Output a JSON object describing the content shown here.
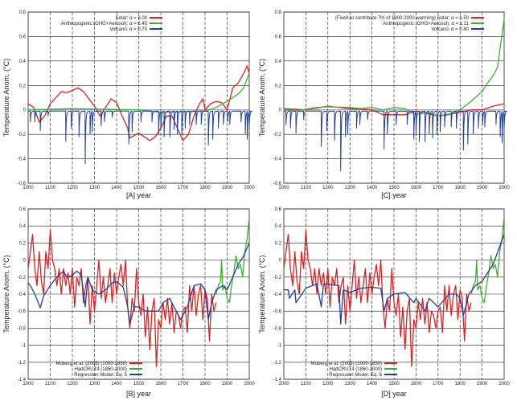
{
  "chart_data": [
    {
      "id": "A",
      "type": "line",
      "xlabel": "[A]  year",
      "ylabel": "Temperature Anom. (°C)",
      "xlim": [
        1000,
        2000
      ],
      "ylim": [
        -0.6,
        0.8
      ],
      "xticks": [
        1000,
        1100,
        1200,
        1300,
        1400,
        1500,
        1600,
        1700,
        1800,
        1900,
        2000
      ],
      "yticks": [
        -0.6,
        -0.4,
        -0.2,
        0,
        0.2,
        0.4,
        0.6,
        0.8
      ],
      "legend_position": "top-right",
      "series": [
        {
          "name": "Solar: α = 3.00",
          "color": "#e02020",
          "x": [
            1000,
            1025,
            1050,
            1075,
            1100,
            1125,
            1150,
            1175,
            1200,
            1225,
            1250,
            1275,
            1300,
            1325,
            1350,
            1375,
            1400,
            1425,
            1450,
            1460,
            1500,
            1525,
            1550,
            1575,
            1600,
            1625,
            1650,
            1675,
            1700,
            1725,
            1750,
            1775,
            1790,
            1800,
            1825,
            1850,
            1875,
            1900,
            1925,
            1950,
            1975,
            1990,
            2000
          ],
          "y": [
            0.05,
            0.02,
            -0.1,
            -0.05,
            0.05,
            0.1,
            0.15,
            0.14,
            0.16,
            0.18,
            0.15,
            0.09,
            0.03,
            -0.05,
            0.02,
            0.09,
            0.06,
            -0.05,
            -0.15,
            -0.23,
            -0.19,
            -0.22,
            -0.25,
            -0.22,
            -0.15,
            -0.05,
            -0.05,
            -0.15,
            -0.25,
            -0.2,
            -0.05,
            0.05,
            0.09,
            0,
            0.05,
            0.07,
            0.06,
            0,
            0.18,
            0.22,
            0.3,
            0.36,
            0.3
          ]
        },
        {
          "name": "Anthropogenic (GHG+Aerosol): α = 0.45",
          "color": "#40b030",
          "x": [
            1000,
            1200,
            1500,
            1600,
            1800,
            1850,
            1900,
            1950,
            1975,
            2000
          ],
          "y": [
            0,
            0.01,
            0,
            -0.02,
            -0.01,
            0.02,
            0.07,
            0.13,
            0.18,
            0.3
          ]
        },
        {
          "name": "Volcano: α = 0.70",
          "color": "#2040a0",
          "kind": "volcano",
          "baseline": -0.01,
          "x": [
            1010,
            1030,
            1055,
            1090,
            1170,
            1195,
            1230,
            1258,
            1280,
            1290,
            1330,
            1345,
            1380,
            1455,
            1470,
            1510,
            1560,
            1590,
            1600,
            1615,
            1641,
            1660,
            1675,
            1695,
            1710,
            1730,
            1760,
            1783,
            1815,
            1835,
            1860,
            1883,
            1902,
            1912,
            1963,
            1982,
            1991,
            2000
          ],
          "y": [
            -0.1,
            -0.1,
            -0.17,
            -0.05,
            -0.26,
            -0.15,
            -0.22,
            -0.44,
            -0.2,
            -0.18,
            -0.13,
            -0.1,
            -0.06,
            -0.28,
            -0.18,
            -0.1,
            -0.1,
            -0.2,
            -0.16,
            -0.22,
            -0.22,
            -0.16,
            -0.2,
            -0.2,
            -0.15,
            -0.12,
            -0.12,
            -0.12,
            -0.29,
            -0.24,
            -0.15,
            -0.12,
            -0.1,
            -0.12,
            -0.1,
            -0.2,
            -0.24,
            -0.13
          ]
        }
      ]
    },
    {
      "id": "C",
      "type": "line",
      "xlabel": "[C]  year",
      "ylabel": "Temperature Anom. (°C)",
      "xlim": [
        1000,
        2000
      ],
      "ylim": [
        -0.6,
        0.8
      ],
      "xticks": [
        1000,
        1100,
        1200,
        1300,
        1400,
        1500,
        1600,
        1700,
        1800,
        1900,
        2000
      ],
      "yticks": [
        -0.6,
        -0.4,
        -0.2,
        0,
        0.2,
        0.4,
        0.6,
        0.8
      ],
      "legend_position": "top-right",
      "series": [
        {
          "name": "(Fixed to contribute 7% of 1900-2000 warming) Solar: α = 0.50",
          "color": "#e02020",
          "x": [
            1000,
            1100,
            1200,
            1300,
            1400,
            1450,
            1550,
            1600,
            1700,
            1800,
            1850,
            1900,
            1950,
            2000
          ],
          "y": [
            0.01,
            0,
            0.03,
            0.01,
            0,
            -0.04,
            -0.04,
            -0.01,
            -0.05,
            -0.02,
            0,
            0,
            0.03,
            0.05
          ]
        },
        {
          "name": "Anthropogenic (GHG+Aerosol): α = 1.11",
          "color": "#40b030",
          "x": [
            1000,
            1050,
            1150,
            1200,
            1300,
            1350,
            1400,
            1450,
            1500,
            1550,
            1600,
            1650,
            1700,
            1750,
            1800,
            1850,
            1900,
            1925,
            1950,
            1970,
            1985,
            2000
          ],
          "y": [
            0,
            -0.01,
            0.02,
            0.025,
            0.02,
            0.01,
            0.02,
            0,
            0.02,
            0.01,
            -0.04,
            -0.02,
            -0.05,
            -0.04,
            0,
            0.07,
            0.15,
            0.22,
            0.28,
            0.35,
            0.55,
            0.74
          ]
        },
        {
          "name": "Volcano: α = 0.80",
          "color": "#2040a0",
          "kind": "volcano",
          "baseline": -0.01,
          "x": [
            1010,
            1030,
            1055,
            1090,
            1170,
            1195,
            1230,
            1258,
            1280,
            1290,
            1330,
            1345,
            1380,
            1455,
            1470,
            1510,
            1560,
            1590,
            1600,
            1615,
            1641,
            1660,
            1675,
            1695,
            1710,
            1730,
            1760,
            1783,
            1815,
            1835,
            1860,
            1883,
            1902,
            1912,
            1963,
            1982,
            1991,
            2000
          ],
          "y": [
            -0.12,
            -0.15,
            -0.19,
            -0.08,
            -0.3,
            -0.17,
            -0.25,
            -0.5,
            -0.22,
            -0.2,
            -0.15,
            -0.12,
            -0.08,
            -0.32,
            -0.2,
            -0.12,
            -0.12,
            -0.24,
            -0.2,
            -0.26,
            -0.26,
            -0.2,
            -0.23,
            -0.2,
            -0.18,
            -0.14,
            -0.14,
            -0.15,
            -0.33,
            -0.28,
            -0.2,
            -0.15,
            -0.12,
            -0.14,
            -0.12,
            -0.22,
            -0.27,
            -0.15
          ]
        }
      ]
    },
    {
      "id": "B",
      "type": "line",
      "xlabel": "[B]  year",
      "ylabel": "Temperature Anom. (°C)",
      "xlim": [
        1000,
        2000
      ],
      "ylim": [
        -1.4,
        0.6
      ],
      "xticks": [
        1000,
        1100,
        1200,
        1300,
        1400,
        1500,
        1600,
        1700,
        1800,
        1900,
        2000
      ],
      "yticks": [
        -1.4,
        -1.2,
        -1,
        -0.8,
        -0.6,
        -0.4,
        -0.2,
        0,
        0.2,
        0.4,
        0.6
      ],
      "legend_position": "bottom-left",
      "series": [
        {
          "name": "Moberg et al. (2005) (1000-1850)",
          "color": "#e02020",
          "ref": "moberg"
        },
        {
          "name": "HadCRUT4 (1850-2000)",
          "color": "#40b030",
          "ref": "hadcrut"
        },
        {
          "name": "Regression Model: Eq. 5",
          "color": "#2040a0",
          "x": [
            1000,
            1010,
            1030,
            1055,
            1070,
            1100,
            1130,
            1160,
            1175,
            1200,
            1220,
            1240,
            1258,
            1270,
            1290,
            1320,
            1350,
            1380,
            1400,
            1430,
            1450,
            1460,
            1480,
            1500,
            1530,
            1560,
            1590,
            1610,
            1640,
            1660,
            1690,
            1720,
            1750,
            1780,
            1800,
            1815,
            1830,
            1850,
            1880,
            1900,
            1925,
            1950,
            1975,
            2000
          ],
          "y": [
            -0.27,
            -0.3,
            -0.4,
            -0.56,
            -0.42,
            -0.3,
            -0.2,
            -0.13,
            -0.2,
            -0.18,
            -0.13,
            -0.17,
            -0.55,
            -0.2,
            -0.35,
            -0.4,
            -0.35,
            -0.27,
            -0.25,
            -0.32,
            -0.55,
            -0.75,
            -0.55,
            -0.55,
            -0.6,
            -0.6,
            -0.6,
            -0.5,
            -0.45,
            -0.55,
            -0.7,
            -0.55,
            -0.3,
            -0.28,
            -0.35,
            -0.7,
            -0.5,
            -0.35,
            -0.3,
            -0.35,
            -0.2,
            -0.05,
            0.05,
            0.2
          ]
        }
      ]
    },
    {
      "id": "D",
      "type": "line",
      "xlabel": "[D]  year",
      "ylabel": "Temperature Anom. (°C)",
      "xlim": [
        1000,
        2000
      ],
      "ylim": [
        -1.4,
        0.6
      ],
      "xticks": [
        1000,
        1100,
        1200,
        1300,
        1400,
        1500,
        1600,
        1700,
        1800,
        1900,
        2000
      ],
      "yticks": [
        -1.4,
        -1.2,
        -1,
        -0.8,
        -0.6,
        -0.4,
        -0.2,
        0,
        0.2,
        0.4,
        0.6
      ],
      "legend_position": "bottom-left",
      "series": [
        {
          "name": "Moberg et al. (2005) (1000-1850)",
          "color": "#e02020",
          "ref": "moberg"
        },
        {
          "name": "HadCRUT4 (1850-2000)",
          "color": "#40b030",
          "ref": "hadcrut"
        },
        {
          "name": "Regression Model: Eq. 6",
          "color": "#2040a0",
          "x": [
            1000,
            1020,
            1025,
            1050,
            1055,
            1100,
            1150,
            1170,
            1180,
            1250,
            1258,
            1270,
            1300,
            1350,
            1400,
            1440,
            1455,
            1470,
            1500,
            1550,
            1590,
            1600,
            1641,
            1660,
            1700,
            1750,
            1783,
            1800,
            1815,
            1840,
            1870,
            1900,
            1950,
            2000
          ],
          "y": [
            -0.35,
            -0.35,
            -0.45,
            -0.35,
            -0.5,
            -0.33,
            -0.28,
            -0.55,
            -0.28,
            -0.3,
            -0.75,
            -0.35,
            -0.38,
            -0.33,
            -0.32,
            -0.33,
            -0.6,
            -0.45,
            -0.4,
            -0.38,
            -0.5,
            -0.45,
            -0.6,
            -0.45,
            -0.55,
            -0.4,
            -0.4,
            -0.45,
            -0.65,
            -0.4,
            -0.3,
            -0.25,
            -0.05,
            0.3
          ]
        }
      ]
    }
  ],
  "shared_series": {
    "moberg": {
      "x": [
        1000,
        1010,
        1020,
        1030,
        1040,
        1050,
        1060,
        1070,
        1080,
        1090,
        1100,
        1110,
        1120,
        1130,
        1140,
        1150,
        1160,
        1170,
        1180,
        1190,
        1200,
        1210,
        1220,
        1230,
        1240,
        1250,
        1260,
        1270,
        1280,
        1290,
        1300,
        1310,
        1320,
        1330,
        1340,
        1350,
        1360,
        1370,
        1380,
        1390,
        1400,
        1410,
        1420,
        1430,
        1440,
        1450,
        1460,
        1470,
        1480,
        1490,
        1500,
        1510,
        1520,
        1530,
        1540,
        1550,
        1560,
        1570,
        1580,
        1590,
        1600,
        1610,
        1620,
        1630,
        1640,
        1650,
        1660,
        1670,
        1680,
        1690,
        1700,
        1710,
        1720,
        1730,
        1740,
        1750,
        1760,
        1770,
        1780,
        1790,
        1800,
        1810,
        1820,
        1830,
        1840,
        1850
      ],
      "y": [
        -0.1,
        0.1,
        0.3,
        -0.1,
        -0.3,
        0.1,
        -0.25,
        -0.4,
        0.1,
        -0.1,
        0.35,
        0,
        -0.1,
        -0.3,
        -0.1,
        -0.4,
        -0.1,
        -0.3,
        -0.15,
        -0.4,
        -0.1,
        -0.55,
        -0.2,
        -0.3,
        -0.1,
        -0.5,
        -0.3,
        -0.2,
        -0.75,
        -0.3,
        -0.6,
        -0.3,
        0,
        -0.45,
        -0.2,
        -0.5,
        -0.3,
        -0.1,
        -0.5,
        -0.15,
        -0.4,
        -0.2,
        -0.05,
        -0.3,
        0,
        -0.55,
        -0.8,
        -0.45,
        -0.6,
        -0.1,
        -0.5,
        -0.65,
        -0.4,
        -0.9,
        -0.55,
        -1.05,
        -0.6,
        -0.45,
        -1.25,
        -0.7,
        -0.8,
        -0.5,
        -0.7,
        -0.45,
        -0.75,
        -0.5,
        -0.85,
        -0.6,
        -0.65,
        -0.8,
        -0.6,
        -0.55,
        -0.85,
        -0.3,
        -0.6,
        -0.3,
        -0.65,
        -0.4,
        -0.3,
        -0.7,
        -0.35,
        -0.45,
        -0.95,
        -0.4,
        -0.6,
        -0.5
      ]
    },
    "hadcrut": {
      "x": [
        1850,
        1860,
        1870,
        1875,
        1880,
        1890,
        1900,
        1910,
        1920,
        1930,
        1940,
        1950,
        1960,
        1970,
        1980,
        1990,
        2000
      ],
      "y": [
        -0.4,
        -0.3,
        -0.25,
        0,
        -0.35,
        -0.3,
        -0.45,
        -0.5,
        -0.3,
        -0.15,
        0.05,
        -0.1,
        -0.05,
        -0.2,
        0.1,
        0.25,
        0.5
      ]
    }
  }
}
